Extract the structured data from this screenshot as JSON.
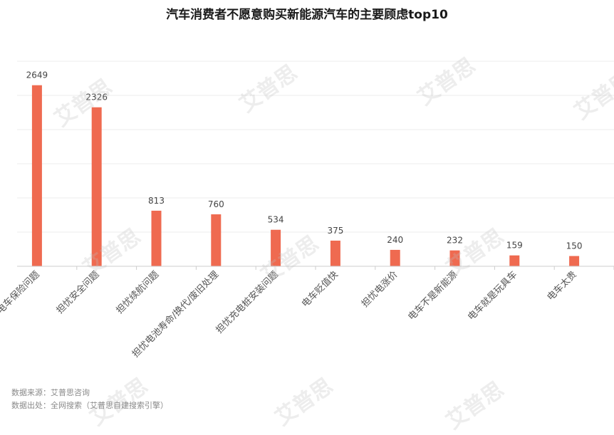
{
  "chart_data": {
    "type": "bar",
    "title": "汽车消费者不愿意购买新能源汽车的主要顾虑top10",
    "categories": [
      "电车保险问题",
      "担忧安全问题",
      "担忧续航问题",
      "担忧电池寿命/换代/废旧处理",
      "担忧充电桩安装问题",
      "电车贬值快",
      "担忧电涨价",
      "电车不是新能源",
      "电车就是玩具车",
      "电车太贵"
    ],
    "values": [
      2649,
      2326,
      813,
      760,
      534,
      375,
      240,
      232,
      159,
      150
    ],
    "xlabel": "",
    "ylabel": "",
    "ylim": [
      0,
      3000
    ],
    "grid": true,
    "legend": "none",
    "bar_color": "#ef6a50"
  },
  "footer": {
    "source": "数据来源：艾普思咨询",
    "origin": "数据出处：全网搜索（艾普思自建搜索引擎）"
  },
  "watermark": "艾普思"
}
